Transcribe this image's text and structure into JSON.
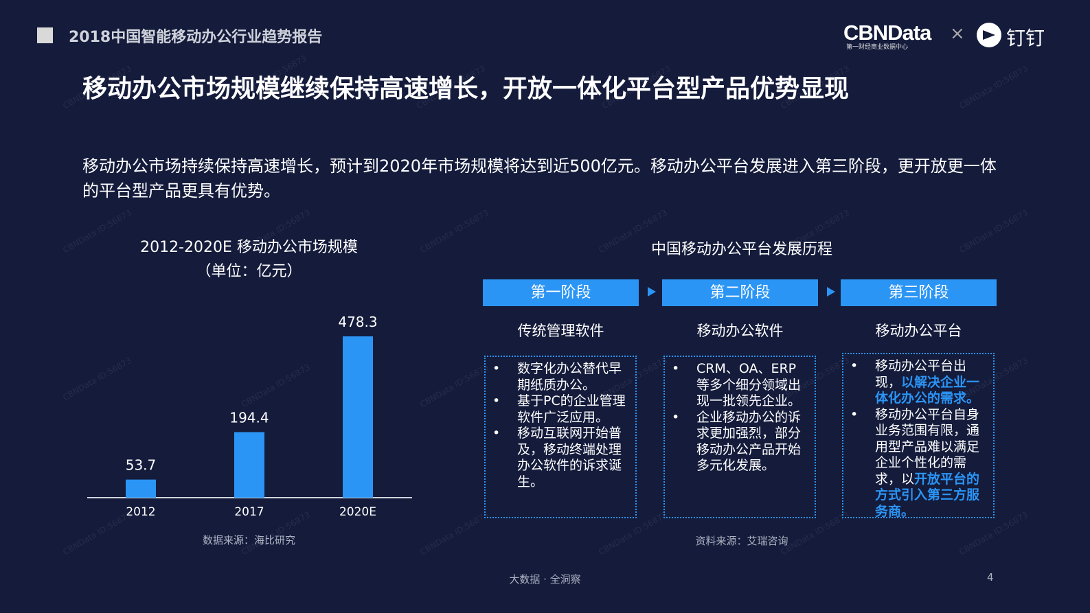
{
  "header": {
    "report_title": "2018中国智能移动办公行业趋势报告",
    "logo": "CBNData",
    "logo_sub": "第一财经商业数据中心",
    "times": "×",
    "partner": "钉钉"
  },
  "watermark": "CBNData ID:56873",
  "title": "移动办公市场规模继续保持高速增长，开放一体化平台型产品优势显现",
  "description": "移动办公市场持续保持高速增长，预计到2020年市场规模将达到近500亿元。移动办公平台发展进入第三阶段，更开放更一体的平台型产品更具有优势。",
  "chart_data": {
    "type": "bar",
    "title": "2012-2020E 移动办公市场规模",
    "subtitle": "（单位：亿元）",
    "categories": [
      "2012",
      "2017",
      "2020E"
    ],
    "values": [
      53.7,
      194.4,
      478.3
    ],
    "color": "#2b95f5",
    "grid": false,
    "source": "数据来源：海比研究"
  },
  "diagram": {
    "title": "中国移动办公平台发展历程",
    "source": "资料来源：艾瑞咨询",
    "stages": [
      {
        "label": "第一阶段",
        "name": "传统管理软件",
        "bullets": [
          [
            {
              "t": "数字化办公替代早期纸质办公。"
            }
          ],
          [
            {
              "t": "基于PC的企业管理软件广泛应用。"
            }
          ],
          [
            {
              "t": "移动互联网开始普及，移动终端处理办公软件的诉求诞生。"
            }
          ]
        ]
      },
      {
        "label": "第二阶段",
        "name": "移动办公软件",
        "bullets": [
          [
            {
              "t": "CRM、OA、ERP等多个细分领域出现一批领先企业。"
            }
          ],
          [
            {
              "t": "企业移动办公的诉求更加强烈，部分移动办公产品开始多元化发展。"
            }
          ]
        ]
      },
      {
        "label": "第三阶段",
        "name": "移动办公平台",
        "bullets": [
          [
            {
              "t": "移动办公平台出现，"
            },
            {
              "t": "以解决企业一体化办公的需求。",
              "hl": true
            }
          ],
          [
            {
              "t": "移动办公平台自身业务范围有限，通用型产品难以满足企业个性化的需求，以"
            },
            {
              "t": "开放平台的方式引入第三方服务商。",
              "hl": true
            }
          ]
        ]
      }
    ]
  },
  "footer": {
    "slogan": "大数据 · 全洞察",
    "page": "4"
  }
}
